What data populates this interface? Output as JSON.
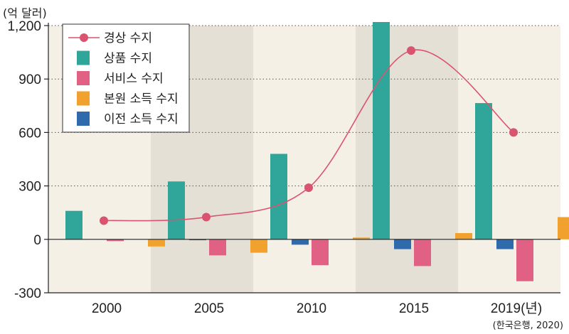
{
  "chart_data": {
    "type": "bar",
    "y_unit_label": "(억 달러)",
    "source": "(한국은행, 2020)",
    "categories": [
      "2000",
      "2005",
      "2010",
      "2015",
      "2019(년)"
    ],
    "ylim": [
      -300,
      1200
    ],
    "yticks": [
      -300,
      0,
      300,
      600,
      900,
      1200
    ],
    "ytick_labels": [
      "-300",
      "0",
      "300",
      "600",
      "900",
      "1,200"
    ],
    "grid": true,
    "legend_position": "top-left",
    "shaded_categories": [
      1,
      3
    ],
    "series": [
      {
        "name": "상품 수지",
        "kind": "bar",
        "color": "#2fa699",
        "values": [
          160,
          325,
          480,
          1220,
          765
        ]
      },
      {
        "name": "서비스 수지",
        "kind": "bar",
        "color": "#e06183",
        "values": [
          -10,
          -90,
          -145,
          -150,
          -235
        ]
      },
      {
        "name": "본원 소득 수지",
        "kind": "bar",
        "color": "#f0a12e",
        "values": [
          -40,
          -75,
          10,
          35,
          125
        ]
      },
      {
        "name": "이전 소득 수지",
        "kind": "bar",
        "color": "#2f6aad",
        "values": [
          -5,
          -30,
          -55,
          -55,
          -60
        ]
      },
      {
        "name": "경상 수지",
        "kind": "line",
        "color": "#d9546f",
        "values": [
          105,
          125,
          290,
          1060,
          600
        ]
      }
    ],
    "legend_order": [
      "경상 수지",
      "상품 수지",
      "서비스 수지",
      "본원 소득 수지",
      "이전 소득 수지"
    ]
  }
}
